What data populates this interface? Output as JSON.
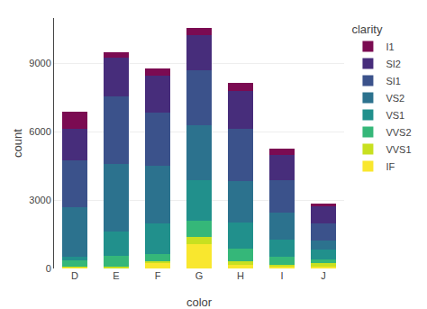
{
  "chart_data": {
    "type": "bar",
    "categories": [
      "D",
      "E",
      "F",
      "G",
      "H",
      "I",
      "J"
    ],
    "series": [
      {
        "name": "IF",
        "color": "#f9e72e",
        "values": [
          73,
          23,
          218,
          1081,
          166,
          84,
          88
        ]
      },
      {
        "name": "VVS1",
        "color": "#c8e020",
        "values": [
          23,
          51,
          85,
          299,
          152,
          84,
          133
        ]
      },
      {
        "name": "VVS2",
        "color": "#35b779",
        "values": [
          253,
          467,
          331,
          721,
          547,
          355,
          185
        ]
      },
      {
        "name": "VS1",
        "color": "#21908c",
        "values": [
          163,
          1081,
          1354,
          1775,
          1169,
          758,
          408
        ]
      },
      {
        "name": "VS2",
        "color": "#2c728e",
        "values": [
          2167,
          2956,
          2513,
          2399,
          1824,
          1169,
          432
        ]
      },
      {
        "name": "SI1",
        "color": "#3b528b",
        "values": [
          2083,
          2966,
          2343,
          2442,
          2275,
          1424,
          750
        ]
      },
      {
        "name": "SI2",
        "color": "#472d7b",
        "values": [
          1370,
          1713,
          1609,
          1548,
          1666,
          1109,
          750
        ]
      },
      {
        "name": "I1",
        "color": "#7b0b52",
        "values": [
          741,
          224,
          312,
          307,
          342,
          287,
          119
        ]
      }
    ],
    "xlabel": "color",
    "ylabel": "count",
    "legend_title": "clarity",
    "ylim": [
      0,
      11000
    ],
    "yticks": [
      0,
      3000,
      6000,
      9000
    ],
    "stacked": true,
    "grid": true,
    "legend": "right"
  }
}
